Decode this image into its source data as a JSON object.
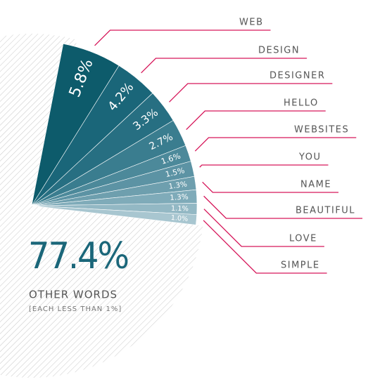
{
  "chart_data": {
    "type": "pie",
    "categories": [
      "WEB",
      "DESIGN",
      "DESIGNER",
      "HELLO",
      "WEBSITES",
      "YOU",
      "NAME",
      "BEAUTIFUL",
      "LOVE",
      "SIMPLE"
    ],
    "values": [
      5.8,
      4.2,
      3.3,
      2.7,
      1.6,
      1.5,
      1.3,
      1.3,
      1.1,
      1.0
    ],
    "value_labels": [
      "5.8%",
      "4.2%",
      "3.3%",
      "2.7%",
      "1.6%",
      "1.5%",
      "1.3%",
      "1.3%",
      "1.1%",
      "1.0%"
    ],
    "colors": [
      "#0d5b6b",
      "#1a6679",
      "#276f82",
      "#3a7d8f",
      "#4c899a",
      "#5c93a4",
      "#6e9fae",
      "#7fabb9",
      "#93b8c4",
      "#a8c6d0"
    ],
    "other": {
      "value": 77.4,
      "label": "77.4%",
      "name": "OTHER WORDS",
      "note": "[EACH LESS THAN 1%]"
    }
  }
}
